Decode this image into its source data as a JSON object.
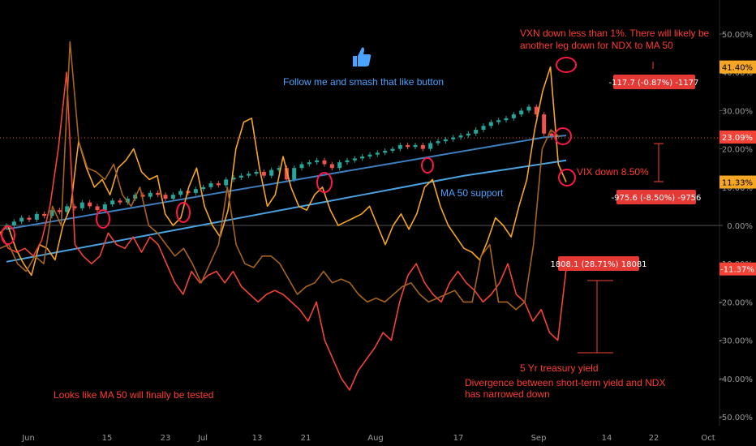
{
  "chart_data": {
    "type": "line",
    "title": "",
    "xlabel": "",
    "ylabel": "",
    "ylim": [
      -52,
      57
    ],
    "grid": false,
    "x_ticks": [
      "Jun",
      "15",
      "23",
      "Jul",
      "13",
      "21",
      "Aug",
      "17",
      "Sep",
      "14",
      "22",
      "Oct"
    ],
    "y_ticks": [
      "50.00%",
      "40.00%",
      "30.00%",
      "20.00%",
      "10.00%",
      "0.00%",
      "-10.00%",
      "-20.00%",
      "-30.00%",
      "-40.00%",
      "-50.00%"
    ],
    "series": [
      {
        "name": "",
        "kind": "candles",
        "color_up": "#26a69a",
        "color_down": "#ef5350",
        "values": [
          0,
          1,
          2,
          1.5,
          3,
          2.5,
          4,
          3.5,
          5,
          4.5,
          6,
          5,
          4,
          5.5,
          6.5,
          6,
          7,
          8,
          7.5,
          8.5,
          8,
          7,
          8,
          9,
          8.5,
          9.5,
          10,
          11,
          10.5,
          12,
          12.5,
          13,
          13.5,
          14,
          13,
          14.5,
          15,
          12,
          15,
          16,
          16.5,
          17,
          16,
          15,
          16.5,
          17,
          17.5,
          18,
          18.5,
          19,
          19.5,
          20,
          21,
          20.5,
          21,
          20,
          21.5,
          22,
          22.5,
          23,
          23.5,
          24,
          25,
          26,
          27,
          27.5,
          28,
          29,
          30,
          31,
          29,
          24,
          23
        ]
      },
      {
        "name": "",
        "kind": "line",
        "color": "#3d7fbf",
        "values": [
          -1,
          0,
          1,
          2,
          3,
          4,
          5,
          6,
          7,
          8,
          9,
          10,
          11,
          12,
          13,
          14,
          15,
          16,
          17,
          18,
          19,
          20,
          21,
          22,
          23,
          23.5
        ]
      },
      {
        "name": "",
        "kind": "line",
        "color": "#4aa3e0",
        "values": [
          -9.5,
          -7,
          -4.5,
          -2,
          0.5,
          3,
          5.5,
          8,
          10.5,
          13,
          15,
          17
        ]
      },
      {
        "name": "",
        "kind": "line",
        "color": "#f5a623",
        "values": [
          -2,
          0,
          -6,
          -10,
          -13,
          -5,
          -6,
          -9,
          0,
          5,
          22,
          15,
          10,
          12,
          8,
          15,
          17,
          20,
          14,
          12,
          13,
          3,
          0,
          2,
          10,
          15,
          5,
          0,
          -3,
          4,
          20,
          27,
          28,
          15,
          5,
          8,
          18,
          10,
          5,
          4,
          8,
          10,
          4,
          0,
          1,
          2,
          3,
          5,
          0,
          -5,
          0,
          3,
          -1,
          3,
          10,
          12,
          5,
          0,
          -3,
          -6,
          -7,
          -9,
          -4,
          2,
          0,
          -3,
          5,
          12,
          25,
          35,
          41.4,
          16,
          11.33
        ]
      },
      {
        "name": "",
        "kind": "line",
        "color": "#f44336",
        "values": [
          -2,
          -6,
          -7,
          -6,
          -8,
          -4,
          5,
          20,
          40,
          -5,
          -8,
          -10,
          -8,
          -2,
          -5,
          -6,
          -3,
          -7,
          -3,
          -5,
          -10,
          -15,
          -18,
          -12,
          -15,
          -13,
          -12,
          -15,
          -12,
          -16,
          -18,
          -20,
          -18,
          -17,
          -18,
          -20,
          -22,
          -25,
          -20,
          -30,
          -35,
          -40,
          -43,
          -38,
          -35,
          -32,
          -28,
          -30,
          -20,
          -13,
          -10,
          -15,
          -18,
          -20,
          -15,
          -12,
          -15,
          -17,
          -20,
          -18,
          -15,
          -10,
          -18,
          -20,
          -25,
          -22,
          -28,
          -30,
          -11.37
        ]
      },
      {
        "name": "",
        "kind": "line",
        "color": "#a8641f",
        "values": [
          -6,
          -5,
          -10,
          -12,
          -8,
          -10,
          5,
          0,
          48,
          22,
          15,
          14,
          12,
          16,
          8,
          5,
          10,
          0,
          -2,
          -5,
          -8,
          -6,
          -10,
          -15,
          -10,
          -5,
          10,
          -5,
          -10,
          -11,
          -8,
          -8,
          -10,
          -14,
          -18,
          -16,
          -15,
          -12,
          -15,
          -14,
          -15,
          -18,
          -20,
          -19,
          -20,
          -18,
          -16,
          -15,
          -18,
          -20,
          -19,
          -18,
          -17,
          -20,
          -20,
          -8,
          -5,
          -20,
          -20,
          -22,
          -20,
          -5,
          20,
          25,
          23.09
        ]
      }
    ],
    "price_tags": [
      {
        "label": "41.40%",
        "color": "#f5a623",
        "text_color": "#000",
        "y": 41.4
      },
      {
        "label": "23.09%",
        "color": "#f44336",
        "text_color": "#fff",
        "y": 23.09
      },
      {
        "label": "11.33%",
        "color": "#f5a623",
        "text_color": "#000",
        "y": 11.33
      },
      {
        "label": "-11.37%",
        "color": "#f44336",
        "text_color": "#fff",
        "y": -11.37
      }
    ],
    "badges": [
      {
        "text": "-117.7 (-0.87%) -1177"
      },
      {
        "text": "-975.6 (-8.50%) -9756"
      },
      {
        "text": "1808.1 (28.71%) 18081"
      }
    ],
    "annotations": [
      {
        "id": "vxn1",
        "text": "VXN down less than 1%.  There will likely be",
        "color": "#ff3b30"
      },
      {
        "id": "vxn2",
        "text": "another leg down for NDX to MA 50",
        "color": "#ff3b30"
      },
      {
        "id": "like",
        "text": "Follow me and smash that like button",
        "color": "#4aa3ff"
      },
      {
        "id": "vix",
        "text": "VIX down 8.50%",
        "color": "#ff3b30"
      },
      {
        "id": "ma50",
        "text": "MA 50 support",
        "color": "#4aa3ff"
      },
      {
        "id": "tsy",
        "text": "5 Yr treasury yield",
        "color": "#ff3b30"
      },
      {
        "id": "div1",
        "text": "Divergence between short-term yield and NDX",
        "color": "#ff3b30"
      },
      {
        "id": "div2",
        "text": "has narrowed down",
        "color": "#ff3b30"
      },
      {
        "id": "tested",
        "text": "Looks like MA 50 will finally be tested",
        "color": "#ff3b30"
      }
    ]
  }
}
